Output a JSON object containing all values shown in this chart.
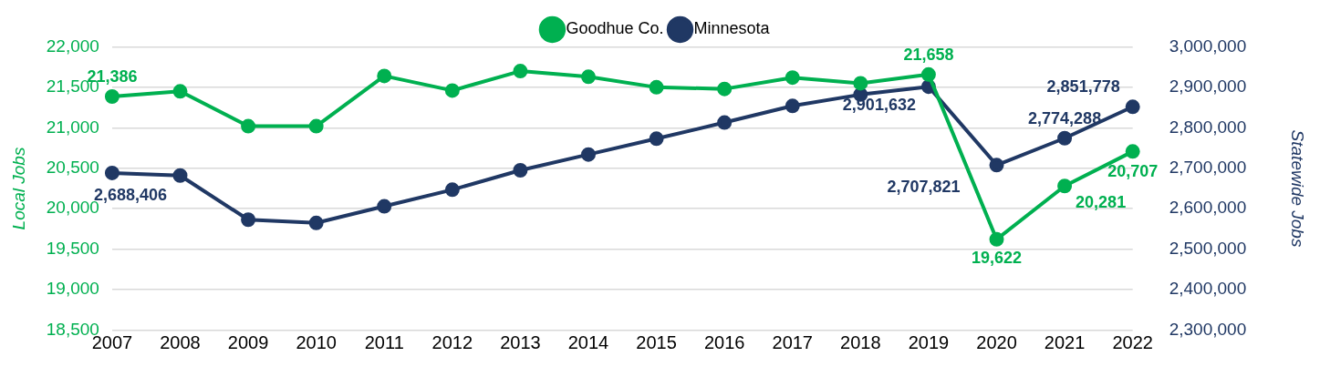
{
  "chart_data": {
    "type": "line",
    "categories": [
      "2007",
      "2008",
      "2009",
      "2010",
      "2011",
      "2012",
      "2013",
      "2014",
      "2015",
      "2016",
      "2017",
      "2018",
      "2019",
      "2020",
      "2021",
      "2022"
    ],
    "ylabel": "Local Jobs",
    "y2label": "Statewide Jobs",
    "ylim": [
      18500,
      22000
    ],
    "yticks": [
      {
        "value": 18500,
        "label": "18,500"
      },
      {
        "value": 19000,
        "label": "19,000"
      },
      {
        "value": 19500,
        "label": "19,500"
      },
      {
        "value": 20000,
        "label": "20,000"
      },
      {
        "value": 20500,
        "label": "20,500"
      },
      {
        "value": 21000,
        "label": "21,000"
      },
      {
        "value": 21500,
        "label": "21,500"
      },
      {
        "value": 22000,
        "label": "22,000"
      }
    ],
    "y2lim": [
      2300000,
      3000000
    ],
    "y2ticks": [
      {
        "value": 2300000,
        "label": "2,300,000"
      },
      {
        "value": 2400000,
        "label": "2,400,000"
      },
      {
        "value": 2500000,
        "label": "2,500,000"
      },
      {
        "value": 2600000,
        "label": "2,600,000"
      },
      {
        "value": 2700000,
        "label": "2,700,000"
      },
      {
        "value": 2800000,
        "label": "2,800,000"
      },
      {
        "value": 2900000,
        "label": "2,900,000"
      },
      {
        "value": 3000000,
        "label": "3,000,000"
      }
    ],
    "grid": "y",
    "legend": "top",
    "marker": "circle",
    "line_style": "solid",
    "series": [
      {
        "name": "Goodhue Co.",
        "color": "#00b050",
        "values": [
          21386,
          21450,
          21020,
          21020,
          21640,
          21460,
          21700,
          21630,
          21500,
          21480,
          21620,
          21550,
          21658,
          19622,
          20281,
          20707
        ],
        "value_labels": [
          "21,386",
          null,
          null,
          null,
          null,
          null,
          null,
          null,
          null,
          null,
          null,
          null,
          "21,658",
          "19,622",
          "20,281",
          "20,707"
        ]
      },
      {
        "name": "Minnesota",
        "color": "#203864",
        "axis": "y2",
        "values": [
          2688406,
          2682000,
          2573000,
          2565000,
          2606000,
          2647000,
          2695000,
          2734000,
          2773000,
          2813000,
          2854000,
          2882000,
          2901632,
          2707821,
          2774288,
          2851778
        ],
        "value_labels": [
          "2,688,406",
          null,
          null,
          null,
          null,
          null,
          null,
          null,
          null,
          null,
          null,
          null,
          "2,901,632",
          "2,707,821",
          "2,774,288",
          "2,851,778"
        ]
      }
    ]
  }
}
